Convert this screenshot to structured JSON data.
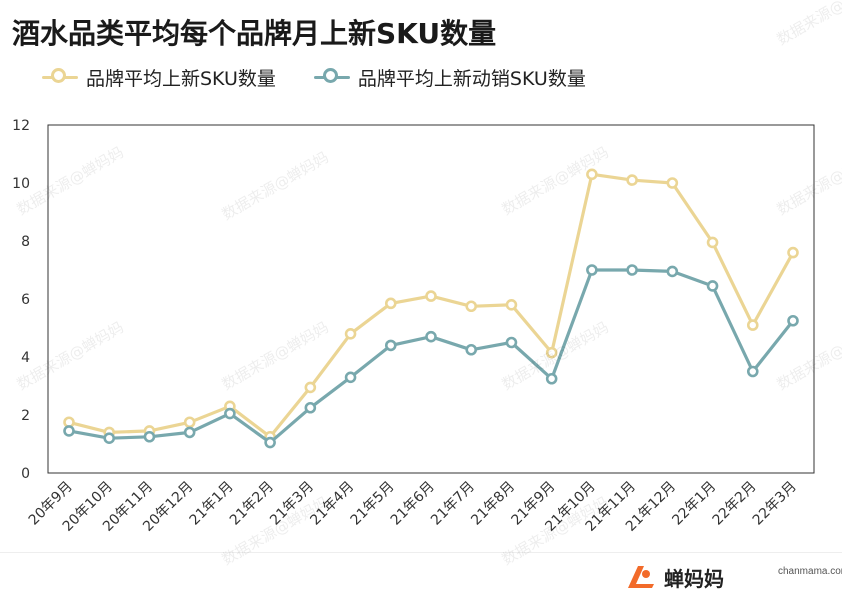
{
  "title": "酒水品类平均每个品牌月上新SKU数量",
  "brand": {
    "name": "蝉妈妈",
    "site": "chanmama.com"
  },
  "watermark": "数据来源@蝉妈妈",
  "colors": {
    "series1": "#EBD594",
    "series2": "#78A8AD",
    "axis": "#333333"
  },
  "chart_data": {
    "type": "line",
    "categories": [
      "20年9月",
      "20年10月",
      "20年11月",
      "20年12月",
      "21年1月",
      "21年2月",
      "21年3月",
      "21年4月",
      "21年5月",
      "21年6月",
      "21年7月",
      "21年8月",
      "21年9月",
      "21年10月",
      "21年11月",
      "21年12月",
      "22年1月",
      "22年2月",
      "22年3月"
    ],
    "series": [
      {
        "name": "品牌平均上新SKU数量",
        "values": [
          1.75,
          1.4,
          1.45,
          1.75,
          2.3,
          1.25,
          2.95,
          4.8,
          5.85,
          6.1,
          5.75,
          5.8,
          4.15,
          10.3,
          10.1,
          10.0,
          7.95,
          5.1,
          7.6
        ]
      },
      {
        "name": "品牌平均上新动销SKU数量",
        "values": [
          1.45,
          1.2,
          1.25,
          1.4,
          2.05,
          1.05,
          2.25,
          3.3,
          4.4,
          4.7,
          4.25,
          4.5,
          3.25,
          7.0,
          7.0,
          6.95,
          6.45,
          3.5,
          5.25
        ]
      }
    ],
    "yticks": [
      0,
      2,
      4,
      6,
      8,
      10,
      12
    ],
    "ylim": [
      0,
      12
    ],
    "grid": false,
    "legend": "top-left"
  }
}
